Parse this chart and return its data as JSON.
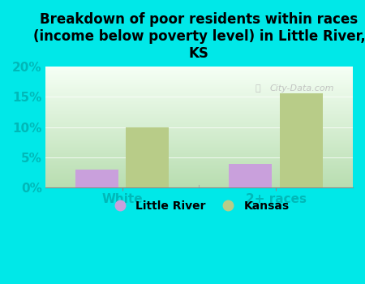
{
  "title": "Breakdown of poor residents within races\n(income below poverty level) in Little River,\nKS",
  "categories": [
    "White",
    "2+ races"
  ],
  "little_river_values": [
    3.0,
    4.0
  ],
  "kansas_values": [
    10.0,
    15.5
  ],
  "little_river_color": "#c9a0dc",
  "kansas_color": "#b8cc88",
  "background_color": "#00e8e8",
  "grad_bottom": "#b8ddb0",
  "grad_top": "#f5fff5",
  "ylim": [
    0,
    20
  ],
  "yticks": [
    0,
    5,
    10,
    15,
    20
  ],
  "ytick_labels": [
    "0%",
    "5%",
    "10%",
    "15%",
    "20%"
  ],
  "bar_width": 0.28,
  "bar_gap": 0.05,
  "legend_labels": [
    "Little River",
    "Kansas"
  ],
  "watermark": "City-Data.com",
  "tick_color": "#00b8b8",
  "title_fontsize": 12,
  "label_fontsize": 11
}
